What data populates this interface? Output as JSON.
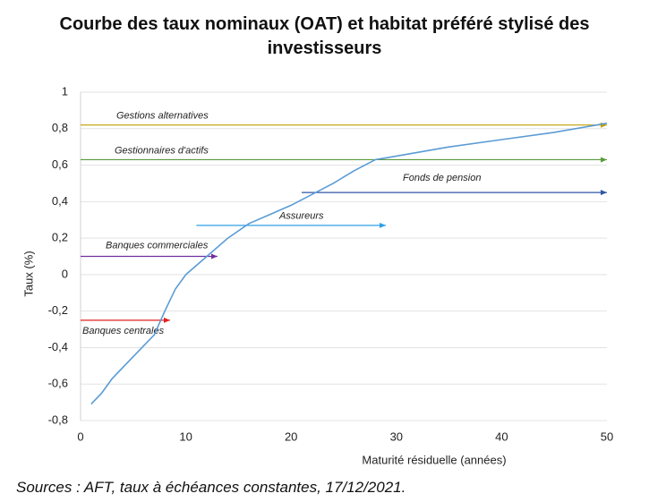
{
  "chart_data": {
    "type": "line",
    "title": "Courbe des taux nominaux (OAT) et habitat préféré stylisé des investisseurs",
    "x_label": "Maturité résiduelle (années)",
    "y_label": "Taux (%)",
    "source": "Sources : AFT, taux à échéances constantes, 17/12/2021.",
    "xlim": [
      0,
      50
    ],
    "xticks": [
      0,
      10,
      20,
      30,
      40,
      50
    ],
    "ylim": [
      -0.8,
      1
    ],
    "yticks": [
      {
        "value": -0.8,
        "label": "-0,8"
      },
      {
        "value": -0.6,
        "label": "-0,6"
      },
      {
        "value": -0.4,
        "label": "-0,4"
      },
      {
        "value": -0.2,
        "label": "-0,2"
      },
      0,
      {
        "value": 0.2,
        "label": "0,2"
      },
      {
        "value": 0.4,
        "label": "0,4"
      },
      {
        "value": 0.6,
        "label": "0,6"
      },
      {
        "value": 0.8,
        "label": "0,8"
      },
      1
    ],
    "grid": true,
    "series": [
      {
        "name": "OAT",
        "color": "#5b9bd5",
        "x": [
          1,
          2,
          3,
          5,
          7,
          8,
          9,
          10,
          12,
          14,
          16,
          18,
          20,
          22,
          24,
          26,
          28,
          30,
          35,
          40,
          45,
          50
        ],
        "values": [
          -0.71,
          -0.65,
          -0.57,
          -0.45,
          -0.33,
          -0.2,
          -0.08,
          0.0,
          0.1,
          0.2,
          0.28,
          0.33,
          0.38,
          0.44,
          0.5,
          0.57,
          0.63,
          0.65,
          0.7,
          0.74,
          0.78,
          0.83
        ]
      }
    ],
    "annotations": [
      {
        "label": "Gestions alternatives",
        "x_start": 0,
        "x_end": 50,
        "y": 0.82,
        "color": "#bf9f00"
      },
      {
        "label": "Gestionnaires d'actifs",
        "x_start": 0,
        "x_end": 50,
        "y": 0.63,
        "color": "#5a9a3a"
      },
      {
        "label": "Fonds de pension",
        "x_start": 21,
        "x_end": 50,
        "y": 0.45,
        "color": "#2f55a4"
      },
      {
        "label": "Assureurs",
        "x_start": 11,
        "x_end": 29,
        "y": 0.27,
        "color": "#2ea0e6"
      },
      {
        "label": "Banques commerciales",
        "x_start": 0,
        "x_end": 13,
        "y": 0.1,
        "color": "#7030a0"
      },
      {
        "label": "Banques centrales",
        "x_start": 0,
        "x_end": 8.5,
        "y": -0.25,
        "color": "#e02020"
      }
    ]
  }
}
